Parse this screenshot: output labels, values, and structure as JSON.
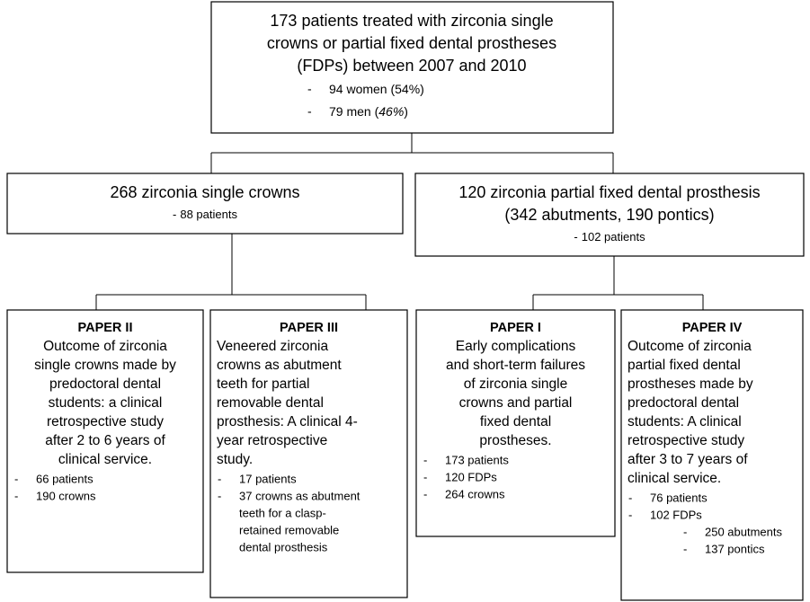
{
  "marker": "-",
  "top": {
    "lines": [
      "173 patients treated with zirconia single",
      "crowns or partial fixed dental prostheses",
      "(FDPs) between 2007 and 2010"
    ],
    "bullets": [
      {
        "text": "94 women (54%)"
      },
      {
        "text": "79 men (",
        "italic": "46%",
        "after": ")"
      }
    ]
  },
  "groups": [
    {
      "title_lines": [
        "268 zirconia single crowns"
      ],
      "bullets": [
        "88 patients"
      ]
    },
    {
      "title_lines": [
        "120 zirconia partial fixed dental prosthesis",
        "(342 abutments, 190 pontics)"
      ],
      "bullets": [
        "102 patients"
      ]
    }
  ],
  "papers": [
    {
      "heading": "PAPER II",
      "lines": [
        "Outcome of zirconia",
        "single crowns made by",
        "predoctoral dental",
        "students: a clinical",
        "retrospective study",
        "after 2 to 6 years of",
        "clinical service."
      ],
      "bullets": [
        {
          "lines": [
            "66 patients"
          ]
        },
        {
          "lines": [
            "190 crowns"
          ]
        }
      ]
    },
    {
      "heading": "PAPER III",
      "lines": [
        "Veneered zirconia",
        "crowns as abutment",
        "teeth for partial",
        "removable dental",
        "prosthesis: A clinical 4-",
        "year retrospective",
        "study."
      ],
      "bullets": [
        {
          "lines": [
            "17 patients"
          ]
        },
        {
          "lines": [
            "37 crowns as abutment",
            "teeth for a clasp-",
            "retained removable",
            "dental prosthesis"
          ]
        }
      ]
    },
    {
      "heading": "PAPER I",
      "lines": [
        "Early complications",
        "and short-term failures",
        "of zirconia single",
        "crowns and partial",
        "fixed dental",
        "prostheses."
      ],
      "bullets": [
        {
          "lines": [
            "173 patients"
          ]
        },
        {
          "lines": [
            "120 FDPs"
          ]
        },
        {
          "lines": [
            "264 crowns"
          ]
        }
      ]
    },
    {
      "heading": "PAPER IV",
      "lines": [
        "Outcome of zirconia",
        "partial fixed dental",
        "prostheses made by",
        "predoctoral dental",
        "students: A clinical",
        "retrospective study",
        "after 3 to 7 years of",
        "clinical service."
      ],
      "bullets": [
        {
          "lines": [
            "76 patients"
          ]
        },
        {
          "lines": [
            "102 FDPs"
          ],
          "sub": [
            "250 abutments",
            "137 pontics"
          ]
        }
      ]
    }
  ]
}
